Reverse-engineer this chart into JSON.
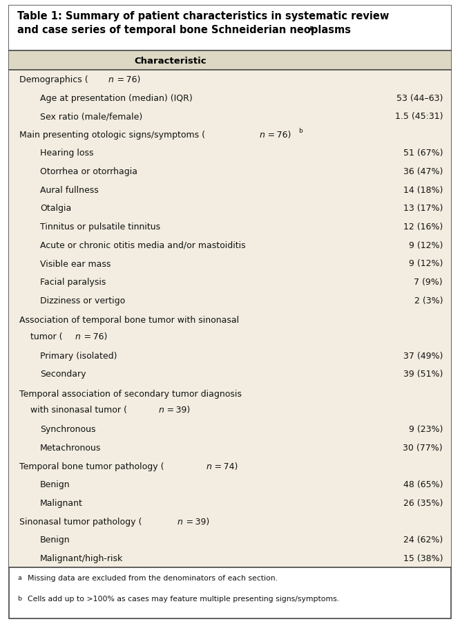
{
  "title_line1": "Table 1: Summary of patient characteristics in systematic review",
  "title_line2": "and case series of temporal bone Schneiderian neoplasms",
  "title_sup": "a",
  "bg_color": "#f2ede0",
  "header_bg": "#ddd8c4",
  "title_bg": "#ffffff",
  "border_color": "#444444",
  "text_color": "#111111",
  "font_size": 9.0,
  "title_font_size": 10.5,
  "header_font_size": 9.5,
  "footnote_font_size": 7.8,
  "rows": [
    {
      "type": "section",
      "label": "Demographics (",
      "label_n": "n",
      "label_end": " = 76)",
      "label_sup": "",
      "value": ""
    },
    {
      "type": "data",
      "label": "Age at presentation (median) (IQR)",
      "value": "53 (44–63)"
    },
    {
      "type": "data",
      "label": "Sex ratio (male/female)",
      "value": "1.5 (45:31)"
    },
    {
      "type": "section",
      "label": "Main presenting otologic signs/symptoms (",
      "label_n": "n",
      "label_end": " = 76)",
      "label_sup": "b",
      "value": ""
    },
    {
      "type": "data",
      "label": "Hearing loss",
      "value": "51 (67%)"
    },
    {
      "type": "data",
      "label": "Otorrhea or otorrhagia",
      "value": "36 (47%)"
    },
    {
      "type": "data",
      "label": "Aural fullness",
      "value": "14 (18%)"
    },
    {
      "type": "data",
      "label": "Otalgia",
      "value": "13 (17%)"
    },
    {
      "type": "data",
      "label": "Tinnitus or pulsatile tinnitus",
      "value": "12 (16%)"
    },
    {
      "type": "data",
      "label": "Acute or chronic otitis media and/or mastoiditis",
      "value": "9 (12%)"
    },
    {
      "type": "data",
      "label": "Visible ear mass",
      "value": "9 (12%)"
    },
    {
      "type": "data",
      "label": "Facial paralysis",
      "value": "7 (9%)"
    },
    {
      "type": "data",
      "label": "Dizziness or vertigo",
      "value": "2 (3%)"
    },
    {
      "type": "section2",
      "label": "Association of temporal bone tumor with sinonasal",
      "label2": "    tumor (",
      "label_n": "n",
      "label_end": " = 76)",
      "label_sup": "",
      "value": ""
    },
    {
      "type": "data",
      "label": "Primary (isolated)",
      "value": "37 (49%)"
    },
    {
      "type": "data",
      "label": "Secondary",
      "value": "39 (51%)"
    },
    {
      "type": "section2",
      "label": "Temporal association of secondary tumor diagnosis",
      "label2": "    with sinonasal tumor (",
      "label_n": "n",
      "label_end": " = 39)",
      "label_sup": "",
      "value": ""
    },
    {
      "type": "data",
      "label": "Synchronous",
      "value": "9 (23%)"
    },
    {
      "type": "data",
      "label": "Metachronous",
      "value": "30 (77%)"
    },
    {
      "type": "section",
      "label": "Temporal bone tumor pathology (",
      "label_n": "n",
      "label_end": " = 74)",
      "label_sup": "",
      "value": ""
    },
    {
      "type": "data",
      "label": "Benign",
      "value": "48 (65%)"
    },
    {
      "type": "data",
      "label": "Malignant",
      "value": "26 (35%)"
    },
    {
      "type": "section",
      "label": "Sinonasal tumor pathology (",
      "label_n": "n",
      "label_end": " = 39)",
      "label_sup": "",
      "value": ""
    },
    {
      "type": "data",
      "label": "Benign",
      "value": "24 (62%)"
    },
    {
      "type": "data",
      "label": "Malignant/high-risk",
      "value": "15 (38%)"
    }
  ],
  "footnote_a": "a Missing data are excluded from the denominators of each section.",
  "footnote_b": "b Cells add up to >100% as cases may feature multiple presenting signs/symptoms."
}
